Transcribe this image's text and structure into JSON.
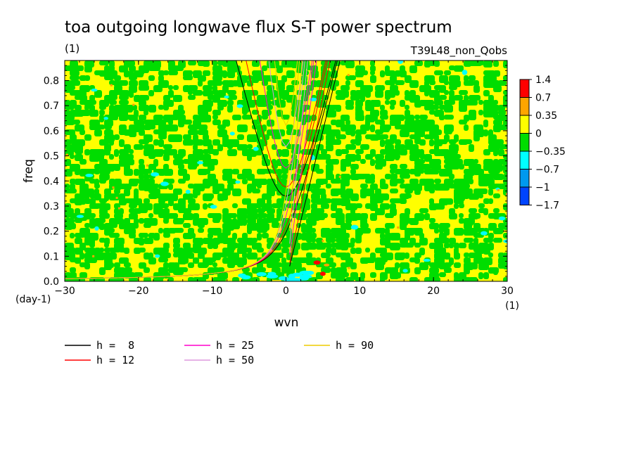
{
  "chart_data": {
    "type": "heatmap",
    "title": "toa outgoing longwave flux S-T power spectrum",
    "title_units": "(1)",
    "subtitle_right": "T39L48_non_Qobs",
    "xlabel": "wvn",
    "xunits": "(1)",
    "ylabel": "freq",
    "yunits": "(day-1)",
    "xlim": [
      -30,
      30
    ],
    "ylim": [
      0,
      0.88
    ],
    "xticks": [
      -30,
      -20,
      -10,
      0,
      10,
      20,
      30
    ],
    "yticks": [
      0.0,
      0.1,
      0.2,
      0.3,
      0.4,
      0.5,
      0.6,
      0.7,
      0.8
    ],
    "ytick_labels": [
      "0.0",
      "0.1",
      "0.2",
      "0.3",
      "0.4",
      "0.5",
      "0.6",
      "0.7",
      "0.8"
    ],
    "colorbar": {
      "levels": [
        "1.4",
        "0.7",
        "0.35",
        "0",
        "-0.35",
        "-0.7",
        "-1",
        "-1.7"
      ],
      "level_labels": [
        "1.4",
        "0.7",
        "0.35",
        "0",
        "−0.35",
        "−0.7",
        "−1",
        "−1.7"
      ],
      "colors": [
        "#ff0000",
        "#ffa500",
        "#ffff00",
        "#00dd00",
        "#00ffff",
        "#0099ee",
        "#0044ff"
      ]
    },
    "field_summary": "Noisy field of values mostly between -0.35 and 0.35 (yellow/green mix) with sparse cyan patches and a few small red/orange spots near wvn 3-5, freq 0.02-0.08",
    "dispersion_curves": [
      {
        "label": "h =  8",
        "h": 8,
        "color": "#000000"
      },
      {
        "label": "h = 12",
        "h": 12,
        "color": "#ff0000"
      },
      {
        "label": "h = 25",
        "h": 25,
        "color": "#ff00cc"
      },
      {
        "label": "h = 50",
        "h": 50,
        "color": "#dd99dd"
      },
      {
        "label": "h = 90",
        "h": 90,
        "color": "#eecc00"
      }
    ],
    "legend_placement": "bottom-left"
  }
}
